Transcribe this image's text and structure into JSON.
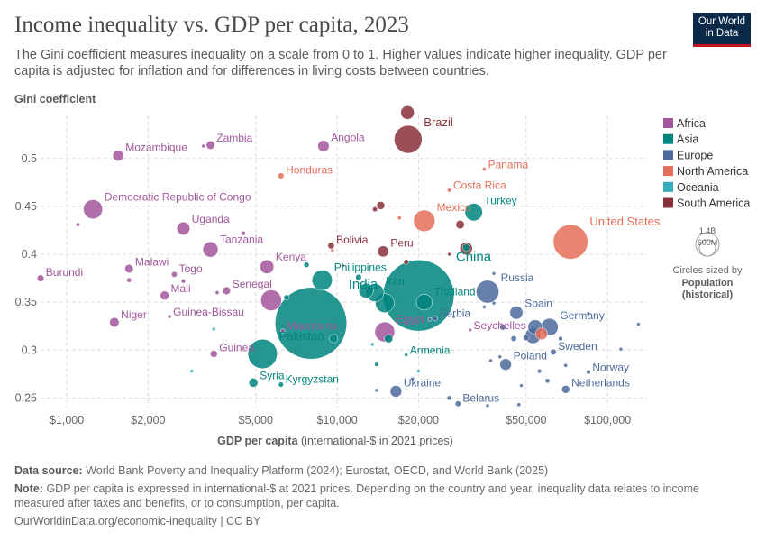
{
  "header": {
    "title": "Income inequality vs. GDP per capita, 2023",
    "subtitle": "The Gini coefficient measures inequality on a scale from 0 to 1. Higher values indicate higher inequality. GDP per capita is adjusted for inflation and for differences in living costs between countries.",
    "logo_line1": "Our World",
    "logo_line2": "in Data"
  },
  "footer": {
    "source_label": "Data source:",
    "source_text": "World Bank Poverty and Inequality Platform (2024); Eurostat, OECD, and World Bank (2025)",
    "note_label": "Note:",
    "note_text": "GDP per capita is expressed in international-$ at 2021 prices. Depending on the country and year, inequality data relates to income measured after taxes and benefits, or to consumption, per capita.",
    "url": "OurWorldinData.org/economic-inequality | CC BY"
  },
  "chart_data": {
    "type": "scatter",
    "title": "Income inequality vs. GDP per capita, 2023",
    "ylabel": "Gini coefficient",
    "xlabel_bold": "GDP per capita",
    "xlabel_rest": " (international-$ in 2021 prices)",
    "x_scale": "log",
    "xlim": [
      800,
      140000
    ],
    "ylim": [
      0.24,
      0.545
    ],
    "x_ticks": [
      1000,
      2000,
      5000,
      10000,
      20000,
      50000,
      100000
    ],
    "x_tick_labels": [
      "$1,000",
      "$2,000",
      "$5,000",
      "$10,000",
      "$20,000",
      "$50,000",
      "$100,000"
    ],
    "y_ticks": [
      0.25,
      0.3,
      0.35,
      0.4,
      0.45,
      0.5
    ],
    "y_tick_labels": [
      "0.25",
      "0.3",
      "0.35",
      "0.4",
      "0.45",
      "0.5"
    ],
    "grid": true,
    "legend_position": "right",
    "legend": [
      {
        "name": "Africa",
        "color": "#a2559c"
      },
      {
        "name": "Asia",
        "color": "#00847e"
      },
      {
        "name": "Europe",
        "color": "#4c6a9c"
      },
      {
        "name": "North America",
        "color": "#e56e5a"
      },
      {
        "name": "Oceania",
        "color": "#38aaba"
      },
      {
        "name": "South America",
        "color": "#883039"
      }
    ],
    "size_legend": {
      "large_label": "1.4B",
      "small_label": "600M",
      "caption_line1": "Circles sized by",
      "caption_line2": "Population",
      "caption_line3": "(historical)"
    },
    "points": [
      {
        "label": "Mozambique",
        "region": "Africa",
        "x": 1550,
        "y": 0.503,
        "pop": 33
      },
      {
        "label": "Zambia",
        "region": "Africa",
        "x": 3400,
        "y": 0.514,
        "pop": 20
      },
      {
        "label": "Angola",
        "region": "Africa",
        "x": 8900,
        "y": 0.513,
        "pop": 36
      },
      {
        "label": "Democratic Republic of Congo",
        "region": "Africa",
        "x": 1250,
        "y": 0.447,
        "pop": 102
      },
      {
        "label": "Uganda",
        "region": "Africa",
        "x": 2700,
        "y": 0.427,
        "pop": 47
      },
      {
        "label": "Tanzania",
        "region": "Africa",
        "x": 3400,
        "y": 0.405,
        "pop": 65
      },
      {
        "label": "Kenya",
        "region": "Africa",
        "x": 5500,
        "y": 0.387,
        "pop": 54
      },
      {
        "label": "Burundi",
        "region": "Africa",
        "x": 800,
        "y": 0.375,
        "pop": 13
      },
      {
        "label": "Malawi",
        "region": "Africa",
        "x": 1700,
        "y": 0.385,
        "pop": 20
      },
      {
        "label": "Togo",
        "region": "Africa",
        "x": 2500,
        "y": 0.379,
        "pop": 9
      },
      {
        "label": "Mali",
        "region": "Africa",
        "x": 2300,
        "y": 0.357,
        "pop": 22
      },
      {
        "label": "Senegal",
        "region": "Africa",
        "x": 3900,
        "y": 0.362,
        "pop": 17
      },
      {
        "label": "Niger",
        "region": "Africa",
        "x": 1500,
        "y": 0.329,
        "pop": 25
      },
      {
        "label": "Guinea-Bissau",
        "region": "Africa",
        "x": 2400,
        "y": 0.335,
        "pop": 2
      },
      {
        "label": "Mauritania",
        "region": "Africa",
        "x": 6300,
        "y": 0.32,
        "pop": 5
      },
      {
        "label": "Guinea",
        "region": "Africa",
        "x": 3500,
        "y": 0.296,
        "pop": 14
      },
      {
        "label": "Egypt",
        "region": "Africa",
        "x": 15000,
        "y": 0.319,
        "pop": 110
      },
      {
        "label": "Seychelles",
        "region": "Africa",
        "x": 31000,
        "y": 0.321,
        "pop": 0.1
      },
      {
        "label": "",
        "region": "Africa",
        "x": 1100,
        "y": 0.431,
        "pop": 4
      },
      {
        "label": "",
        "region": "Africa",
        "x": 3200,
        "y": 0.513,
        "pop": 3
      },
      {
        "label": "",
        "region": "Africa",
        "x": 4500,
        "y": 0.422,
        "pop": 5
      },
      {
        "label": "",
        "region": "Africa",
        "x": 1700,
        "y": 0.373,
        "pop": 6
      },
      {
        "label": "",
        "region": "Africa",
        "x": 2700,
        "y": 0.372,
        "pop": 5
      },
      {
        "label": "",
        "region": "Africa",
        "x": 5700,
        "y": 0.352,
        "pop": 120
      },
      {
        "label": "",
        "region": "Africa",
        "x": 3600,
        "y": 0.36,
        "pop": 4
      },
      {
        "label": "Philippines",
        "region": "Asia",
        "x": 8800,
        "y": 0.373,
        "pop": 115
      },
      {
        "label": "India",
        "region": "Asia",
        "x": 8000,
        "y": 0.328,
        "pop": 1430
      },
      {
        "label": "Iran",
        "region": "Asia",
        "x": 13800,
        "y": 0.36,
        "pop": 90
      },
      {
        "label": "China",
        "region": "Asia",
        "x": 20000,
        "y": 0.357,
        "pop": 1410
      },
      {
        "label": "Thailand",
        "region": "Asia",
        "x": 21000,
        "y": 0.35,
        "pop": 70
      },
      {
        "label": "Pakistan",
        "region": "Asia",
        "x": 5300,
        "y": 0.296,
        "pop": 240
      },
      {
        "label": "Syria",
        "region": "Asia",
        "x": 4900,
        "y": 0.266,
        "pop": 23
      },
      {
        "label": "Kyrgyzstan",
        "region": "Asia",
        "x": 6200,
        "y": 0.264,
        "pop": 7
      },
      {
        "label": "Turkey",
        "region": "Asia",
        "x": 32000,
        "y": 0.444,
        "pop": 86
      },
      {
        "label": "Armenia",
        "region": "Asia",
        "x": 18000,
        "y": 0.295,
        "pop": 3
      },
      {
        "label": "",
        "region": "Asia",
        "x": 12800,
        "y": 0.362,
        "pop": 60
      },
      {
        "label": "",
        "region": "Asia",
        "x": 15000,
        "y": 0.349,
        "pop": 100
      },
      {
        "label": "",
        "region": "Asia",
        "x": 9700,
        "y": 0.312,
        "pop": 20
      },
      {
        "label": "",
        "region": "Asia",
        "x": 30000,
        "y": 0.407,
        "pop": 15
      },
      {
        "label": "",
        "region": "Asia",
        "x": 7700,
        "y": 0.389,
        "pop": 8
      },
      {
        "label": "",
        "region": "Asia",
        "x": 6500,
        "y": 0.355,
        "pop": 8
      },
      {
        "label": "",
        "region": "Asia",
        "x": 14000,
        "y": 0.285,
        "pop": 5
      },
      {
        "label": "",
        "region": "Asia",
        "x": 15500,
        "y": 0.312,
        "pop": 20
      },
      {
        "label": "",
        "region": "Asia",
        "x": 12000,
        "y": 0.376,
        "pop": 10
      },
      {
        "label": "Russia",
        "region": "Europe",
        "x": 36000,
        "y": 0.361,
        "pop": 145
      },
      {
        "label": "Serbia",
        "region": "Europe",
        "x": 23000,
        "y": 0.333,
        "pop": 7
      },
      {
        "label": "Spain",
        "region": "Europe",
        "x": 46000,
        "y": 0.339,
        "pop": 48
      },
      {
        "label": "Germany",
        "region": "Europe",
        "x": 61000,
        "y": 0.324,
        "pop": 84
      },
      {
        "label": "Sweden",
        "region": "Europe",
        "x": 63000,
        "y": 0.298,
        "pop": 10
      },
      {
        "label": "Poland",
        "region": "Europe",
        "x": 42000,
        "y": 0.285,
        "pop": 38
      },
      {
        "label": "Norway",
        "region": "Europe",
        "x": 85000,
        "y": 0.277,
        "pop": 5
      },
      {
        "label": "Netherlands",
        "region": "Europe",
        "x": 70000,
        "y": 0.259,
        "pop": 18
      },
      {
        "label": "Ukraine",
        "region": "Europe",
        "x": 16500,
        "y": 0.257,
        "pop": 38
      },
      {
        "label": "Belarus",
        "region": "Europe",
        "x": 28000,
        "y": 0.244,
        "pop": 9
      },
      {
        "label": "",
        "region": "Europe",
        "x": 38000,
        "y": 0.38,
        "pop": 3
      },
      {
        "label": "",
        "region": "Europe",
        "x": 54000,
        "y": 0.324,
        "pop": 60
      },
      {
        "label": "",
        "region": "Europe",
        "x": 53000,
        "y": 0.315,
        "pop": 68
      },
      {
        "label": "",
        "region": "Europe",
        "x": 50000,
        "y": 0.313,
        "pop": 10
      },
      {
        "label": "",
        "region": "Europe",
        "x": 45000,
        "y": 0.312,
        "pop": 9
      },
      {
        "label": "",
        "region": "Europe",
        "x": 40000,
        "y": 0.293,
        "pop": 2
      },
      {
        "label": "",
        "region": "Europe",
        "x": 48000,
        "y": 0.263,
        "pop": 2
      },
      {
        "label": "",
        "region": "Europe",
        "x": 70000,
        "y": 0.284,
        "pop": 4
      },
      {
        "label": "",
        "region": "Europe",
        "x": 112000,
        "y": 0.301,
        "pop": 2
      },
      {
        "label": "",
        "region": "Europe",
        "x": 130000,
        "y": 0.327,
        "pop": 1
      },
      {
        "label": "",
        "region": "Europe",
        "x": 38000,
        "y": 0.349,
        "pop": 2
      },
      {
        "label": "",
        "region": "Europe",
        "x": 35000,
        "y": 0.345,
        "pop": 3
      },
      {
        "label": "",
        "region": "Europe",
        "x": 27000,
        "y": 0.335,
        "pop": 3
      },
      {
        "label": "",
        "region": "Europe",
        "x": 22000,
        "y": 0.332,
        "pop": 3
      },
      {
        "label": "",
        "region": "Europe",
        "x": 37000,
        "y": 0.289,
        "pop": 2
      },
      {
        "label": "",
        "region": "Europe",
        "x": 60000,
        "y": 0.268,
        "pop": 6
      },
      {
        "label": "",
        "region": "Europe",
        "x": 67000,
        "y": 0.312,
        "pop": 5
      },
      {
        "label": "",
        "region": "Europe",
        "x": 56000,
        "y": 0.278,
        "pop": 5
      },
      {
        "label": "",
        "region": "Europe",
        "x": 41000,
        "y": 0.324,
        "pop": 10
      },
      {
        "label": "",
        "region": "Europe",
        "x": 47000,
        "y": 0.243,
        "pop": 4
      },
      {
        "label": "",
        "region": "Europe",
        "x": 26000,
        "y": 0.25,
        "pop": 6
      },
      {
        "label": "",
        "region": "Europe",
        "x": 36000,
        "y": 0.242,
        "pop": 2
      },
      {
        "label": "",
        "region": "Europe",
        "x": 19000,
        "y": 0.27,
        "pop": 2
      },
      {
        "label": "",
        "region": "Europe",
        "x": 14000,
        "y": 0.258,
        "pop": 3
      },
      {
        "label": "",
        "region": "Europe",
        "x": 85000,
        "y": 0.338,
        "pop": 2
      },
      {
        "label": "Honduras",
        "region": "North America",
        "x": 6200,
        "y": 0.482,
        "pop": 10
      },
      {
        "label": "Panama",
        "region": "North America",
        "x": 35000,
        "y": 0.489,
        "pop": 4
      },
      {
        "label": "Costa Rica",
        "region": "North America",
        "x": 26000,
        "y": 0.467,
        "pop": 5
      },
      {
        "label": "Mexico",
        "region": "North America",
        "x": 21000,
        "y": 0.435,
        "pop": 128
      },
      {
        "label": "United States",
        "region": "North America",
        "x": 73000,
        "y": 0.413,
        "pop": 335
      },
      {
        "label": "",
        "region": "North America",
        "x": 17000,
        "y": 0.438,
        "pop": 4
      },
      {
        "label": "",
        "region": "North America",
        "x": 10500,
        "y": 0.388,
        "pop": 3
      },
      {
        "label": "",
        "region": "North America",
        "x": 9600,
        "y": 0.404,
        "pop": 3
      },
      {
        "label": "",
        "region": "North America",
        "x": 57000,
        "y": 0.317,
        "pop": 40
      },
      {
        "label": "",
        "region": "Oceania",
        "x": 2900,
        "y": 0.278,
        "pop": 3
      },
      {
        "label": "",
        "region": "Oceania",
        "x": 3500,
        "y": 0.322,
        "pop": 2
      },
      {
        "label": "",
        "region": "Oceania",
        "x": 13500,
        "y": 0.306,
        "pop": 2
      },
      {
        "label": "",
        "region": "Oceania",
        "x": 20000,
        "y": 0.278,
        "pop": 1
      },
      {
        "label": "Brazil",
        "region": "South America",
        "x": 18300,
        "y": 0.52,
        "pop": 216
      },
      {
        "label": "Bolivia",
        "region": "South America",
        "x": 9500,
        "y": 0.409,
        "pop": 12
      },
      {
        "label": "Peru",
        "region": "South America",
        "x": 14800,
        "y": 0.403,
        "pop": 34
      },
      {
        "label": "",
        "region": "South America",
        "x": 18200,
        "y": 0.548,
        "pop": 52
      },
      {
        "label": "",
        "region": "South America",
        "x": 14500,
        "y": 0.451,
        "pop": 18
      },
      {
        "label": "",
        "region": "South America",
        "x": 13800,
        "y": 0.447,
        "pop": 7
      },
      {
        "label": "",
        "region": "South America",
        "x": 28500,
        "y": 0.431,
        "pop": 20
      },
      {
        "label": "",
        "region": "South America",
        "x": 18000,
        "y": 0.392,
        "pop": 7
      },
      {
        "label": "",
        "region": "South America",
        "x": 30000,
        "y": 0.406,
        "pop": 45
      },
      {
        "label": "",
        "region": "South America",
        "x": 26000,
        "y": 0.4,
        "pop": 3
      }
    ]
  }
}
